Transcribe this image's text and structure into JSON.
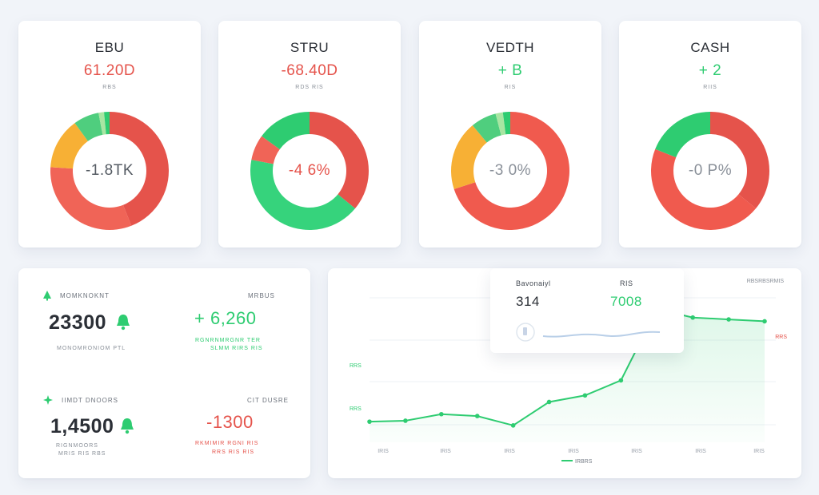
{
  "donuts": [
    {
      "title": "EBU",
      "value": "61.20D",
      "value_color": "#e5534b",
      "sub": "RBS",
      "center": "-1.8TK",
      "center_color": "#555b63",
      "segments": [
        {
          "share": 0.44,
          "color": "#e5534b"
        },
        {
          "share": 0.32,
          "color": "#f06457"
        },
        {
          "share": 0.14,
          "color": "#f7b035"
        },
        {
          "share": 0.07,
          "color": "#4fce7e"
        },
        {
          "share": 0.015,
          "color": "#a8e6a2"
        },
        {
          "share": 0.015,
          "color": "#2ecc71"
        }
      ]
    },
    {
      "title": "STRU",
      "value": "-68.40D",
      "value_color": "#e5534b",
      "sub": "RDS RIS",
      "center": "-4 6%",
      "center_color": "#e5534b",
      "segments": [
        {
          "share": 0.36,
          "color": "#e5534b"
        },
        {
          "share": 0.42,
          "color": "#36d37c"
        },
        {
          "share": 0.07,
          "color": "#f06457"
        },
        {
          "share": 0.15,
          "color": "#2ecc71"
        }
      ]
    },
    {
      "title": "VEDTH",
      "value": "+ B",
      "value_color": "#2ecc71",
      "sub": "RIS",
      "center": "-3 0%",
      "center_color": "#8a9099",
      "segments": [
        {
          "share": 0.7,
          "color": "#f05a4e"
        },
        {
          "share": 0.19,
          "color": "#f7b035"
        },
        {
          "share": 0.07,
          "color": "#4fce7e"
        },
        {
          "share": 0.02,
          "color": "#a8e6a2"
        },
        {
          "share": 0.02,
          "color": "#2ecc71"
        }
      ]
    },
    {
      "title": "CASH",
      "value": "+ 2",
      "value_color": "#2ecc71",
      "sub": "RIIS",
      "center": "-0 P%",
      "center_color": "#8a9099",
      "segments": [
        {
          "share": 0.36,
          "color": "#e5534b"
        },
        {
          "share": 0.45,
          "color": "#f05a4e"
        },
        {
          "share": 0.19,
          "color": "#2ecc71"
        }
      ]
    }
  ],
  "stats": {
    "top": {
      "label": "MOMKNOKNT",
      "right_label": "MRBUS",
      "big": "23300",
      "delta": "+ 6,260",
      "delta_color": "#2ecc71",
      "left_sub": "MONOMRONIOM PTL",
      "right_sub_1": "RGNRNMRGNR TER",
      "right_sub_2": "SLMM RIRS RIS",
      "right_sub_color": "#2ecc71"
    },
    "bottom": {
      "label": "IIMDT DNOORS",
      "right_label": "CIT DUSRE",
      "big": "1,4500",
      "delta": "-1300",
      "delta_color": "#e5534b",
      "left_sub_1": "RIGNMOORS",
      "left_sub_2": "MRIS RIS RBS",
      "right_sub_1": "RKMIMIR RGNI RIS",
      "right_sub_2": "RRS RIS RIS",
      "right_sub_color": "#e5534b"
    }
  },
  "tooltip": {
    "head_left": "Bavonaiyl",
    "head_right": "RIS",
    "val_left": "314",
    "val_right": "7008",
    "val_right_color": "#2ecc71"
  },
  "chart_data": {
    "type": "line",
    "title": "",
    "legend_label": "IRBRS",
    "top_right_label": "RBSRBSRMIS",
    "right_label": "RRS",
    "y_tick_labels": [
      "RRS",
      "RRS"
    ],
    "x_tick_labels": [
      "IRIS",
      "IRIS",
      "IRIS",
      "IRIS",
      "IRIS",
      "IRIS",
      "IRIS"
    ],
    "x": [
      0,
      1,
      2,
      3,
      4,
      5,
      6,
      7,
      8,
      9,
      10,
      11
    ],
    "values": [
      22,
      23,
      30,
      28,
      18,
      43,
      50,
      66,
      142,
      133,
      131,
      129
    ],
    "ylim": [
      0,
      160
    ],
    "line_color": "#2ecc71",
    "area_color": "#2ecc71"
  }
}
